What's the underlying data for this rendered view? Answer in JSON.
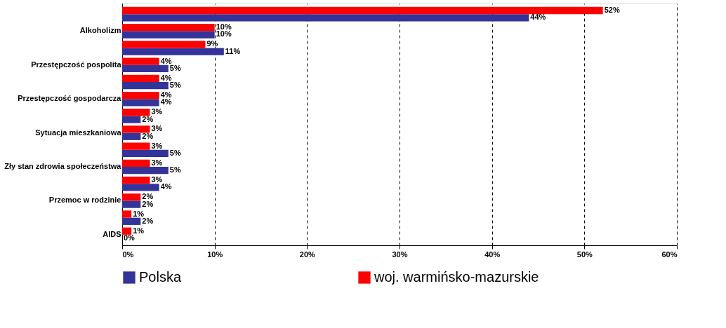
{
  "chart_data": {
    "type": "bar",
    "orientation": "horizontal",
    "categories": [
      null,
      "Alkoholizm",
      null,
      "Przestępczość pospolita",
      null,
      "Przestępczość gospodarcza",
      null,
      "Sytuacja mieszkaniowa",
      null,
      "Zły stan zdrowia społeczeństwa",
      null,
      "Przemoc w rodzinie",
      null,
      "AIDS"
    ],
    "series": [
      {
        "name": "Polska",
        "color": "#333399",
        "values": [
          44,
          10,
          11,
          5,
          5,
          4,
          2,
          2,
          5,
          5,
          4,
          2,
          2,
          0
        ],
        "value_labels": [
          "44%",
          "10%",
          "11%",
          "5%",
          "5%",
          "4%",
          "2%",
          "2%",
          "5%",
          "5%",
          "4%",
          "2%",
          "2%",
          "0%"
        ]
      },
      {
        "name": "woj. warmińsko-mazurskie",
        "color": "#ff0000",
        "values": [
          52,
          10,
          9,
          4,
          4,
          4,
          3,
          3,
          3,
          3,
          3,
          2,
          1,
          1
        ],
        "value_labels": [
          "52%",
          "10%",
          "9%",
          "4%",
          "4%",
          "4%",
          "3%",
          "3%",
          "3%",
          "3%",
          "3%",
          "2%",
          "1%",
          "1%"
        ]
      }
    ],
    "xlim": [
      0,
      60
    ],
    "xticks": [
      {
        "value": 0,
        "label": "0%"
      },
      {
        "value": 10,
        "label": "10%"
      },
      {
        "value": 20,
        "label": "20%"
      },
      {
        "value": 30,
        "label": "30%"
      },
      {
        "value": 40,
        "label": "40%"
      },
      {
        "value": 50,
        "label": "50%"
      },
      {
        "value": 60,
        "label": "60%"
      }
    ],
    "grid": "x",
    "legend": "bottom"
  }
}
